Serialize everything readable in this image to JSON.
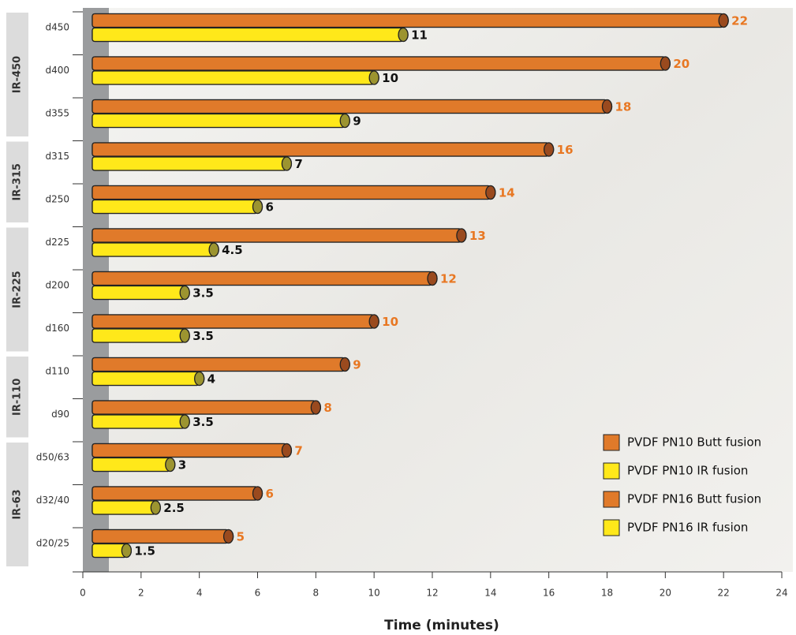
{
  "chart_data": {
    "type": "bar",
    "orientation": "horizontal",
    "x_label": "Time (minutes)",
    "categories": [
      "d450",
      "d400",
      "d355",
      "d315",
      "d250",
      "d225",
      "d200",
      "d160",
      "d110",
      "d90",
      "d50/63",
      "d32/40",
      "d20/25"
    ],
    "groups": [
      {
        "label": "IR-450",
        "size": 3
      },
      {
        "label": "IR-315",
        "size": 2
      },
      {
        "label": "IR-225",
        "size": 3
      },
      {
        "label": "IR-110",
        "size": 2
      },
      {
        "label": "IR-63",
        "size": 3
      }
    ],
    "series": [
      {
        "name": "PVDF PN10 Butt fusion",
        "color": "#e07a2a",
        "values": [
          22,
          20,
          18,
          16,
          14,
          13,
          12,
          10,
          9,
          8,
          7,
          6,
          5
        ]
      },
      {
        "name": "PVDF PN10 IR fusion",
        "color": "#ffe81a",
        "values": [
          11,
          10,
          9,
          7,
          6,
          4.5,
          3.5,
          3.5,
          4,
          3.5,
          3,
          2.5,
          1.5
        ]
      },
      {
        "name": "PVDF PN16 Butt fusion",
        "color": "#e07a2a",
        "values": [
          22,
          20,
          18,
          16,
          14,
          13,
          12,
          10,
          9,
          8,
          7,
          6,
          5
        ]
      },
      {
        "name": "PVDF PN16 IR fusion",
        "color": "#ffe81a",
        "values": [
          11,
          10,
          9,
          7,
          6,
          4.5,
          3.5,
          3.5,
          4,
          3.5,
          3,
          2.5,
          1.5
        ]
      }
    ],
    "xlim": [
      0,
      24
    ],
    "xticks": [
      0,
      2,
      4,
      6,
      8,
      10,
      12,
      14,
      16,
      18,
      20,
      22,
      24
    ]
  }
}
